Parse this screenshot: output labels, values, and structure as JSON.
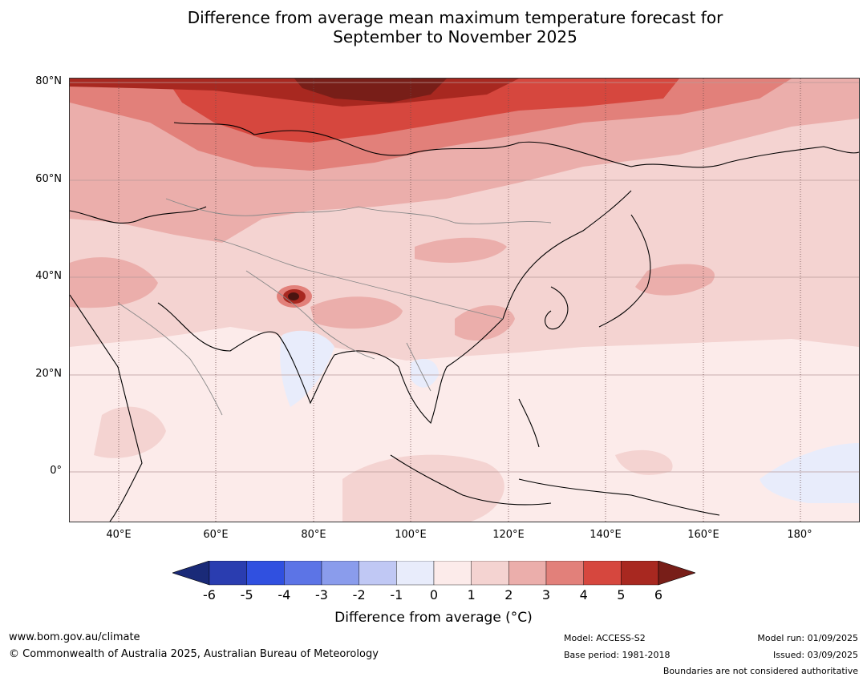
{
  "title": {
    "line1": "Difference from average mean maximum temperature forecast for",
    "line2": "September to November 2025"
  },
  "map": {
    "lat_labels": [
      "80°N",
      "60°N",
      "40°N",
      "20°N",
      "0°"
    ],
    "lon_labels": [
      "40°E",
      "60°E",
      "80°E",
      "100°E",
      "120°E",
      "140°E",
      "160°E",
      "180°"
    ],
    "lon_range": [
      30,
      192
    ],
    "lat_range": [
      -10,
      80.5
    ]
  },
  "colorbar": {
    "title": "Difference from average (°C)",
    "ticks": [
      "-6",
      "-5",
      "-4",
      "-3",
      "-2",
      "-1",
      "0",
      "1",
      "2",
      "3",
      "4",
      "5",
      "6"
    ],
    "colors": [
      "#1a2a78",
      "#2a3db0",
      "#3050e0",
      "#5c74e6",
      "#8a9cec",
      "#c0c8f4",
      "#e8ecfb",
      "#fcebea",
      "#f4d3d1",
      "#ebaeab",
      "#e2807a",
      "#d6473e",
      "#a82820",
      "#781e18"
    ]
  },
  "footer": {
    "website": "www.bom.gov.au/climate",
    "copyright": "© Commonwealth of Australia 2025, Australian Bureau of Meteorology",
    "model": "Model: ACCESS-S2",
    "base_period": "Base period: 1981-2018",
    "model_run": "Model run: 01/09/2025",
    "issued": "Issued: 03/09/2025",
    "disclaimer": "Boundaries are not considered authoritative"
  }
}
